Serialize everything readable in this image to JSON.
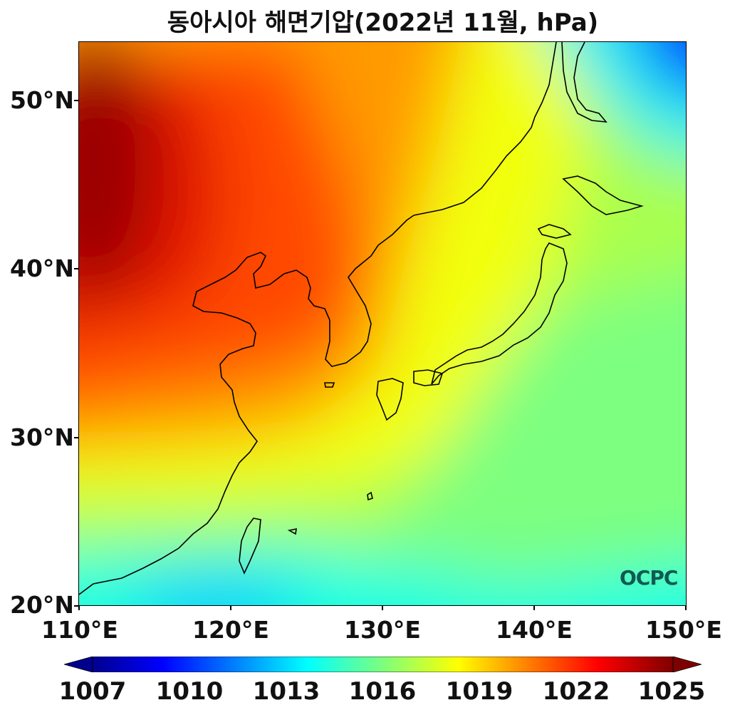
{
  "title": "동아시아 해면기압(2022년 11월, hPa)",
  "map": {
    "region": "East Asia",
    "projection": "equirectangular",
    "lon_range": [
      110,
      150
    ],
    "lat_range": [
      20,
      53.5
    ],
    "lat_labels": [
      "20°N",
      "30°N",
      "40°N",
      "50°N"
    ],
    "lon_labels": [
      "110°E",
      "120°E",
      "130°E",
      "140°E",
      "150°E"
    ],
    "field_variable": "sea level pressure",
    "colormap": "jet",
    "coastline_color": "#000000"
  },
  "colorbar": {
    "min": 1007,
    "max": 1025,
    "extend": "both",
    "tick_labels": [
      "1007",
      "1010",
      "1013",
      "1016",
      "1019",
      "1022",
      "1025"
    ]
  },
  "logo": {
    "text": "OCPC"
  }
}
